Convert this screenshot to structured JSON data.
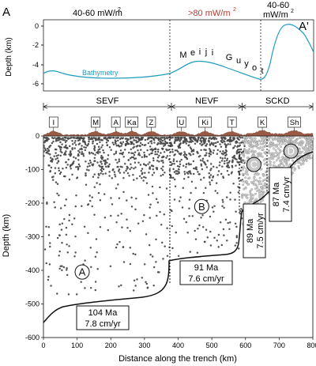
{
  "top_panel": {
    "label_left": "A",
    "label_right": "A'",
    "heat_left": "40-60 mW/m",
    "heat_middle": ">80 mW/m",
    "heat_right_line1": "40-60",
    "heat_right_line2": "mW/m",
    "superscript": "2",
    "ylabel": "Depth (km)",
    "yticks": [
      "0",
      "-2",
      "-4",
      "-6"
    ],
    "bathymetry_label": "Bathymetry",
    "guyot_letters": [
      "M",
      "e",
      "i",
      "j",
      "i",
      "G",
      "u",
      "y",
      "o",
      "t"
    ],
    "heat_middle_color": "#c0392b",
    "bathymetry_color": "#1f9bbf"
  },
  "segments": [
    {
      "name": "SEVF",
      "x_from": 0,
      "x_to": 380
    },
    {
      "name": "NEVF",
      "x_from": 380,
      "x_to": 590
    },
    {
      "name": "SCKD",
      "x_from": 590,
      "x_to": 800
    }
  ],
  "volcano_labels": [
    {
      "text": "I",
      "x": 30
    },
    {
      "text": "M",
      "x": 155
    },
    {
      "text": "A",
      "x": 215
    },
    {
      "text": "Ka",
      "x": 262
    },
    {
      "text": "Z",
      "x": 320
    },
    {
      "text": "U",
      "x": 410
    },
    {
      "text": "Ki",
      "x": 480
    },
    {
      "text": "T",
      "x": 560
    },
    {
      "text": "K",
      "x": 650
    },
    {
      "text": "Sh",
      "x": 745
    }
  ],
  "zones": [
    {
      "text": "A",
      "x": 115,
      "depth": 405,
      "shaded": false
    },
    {
      "text": "B",
      "x": 470,
      "depth": 210,
      "shaded": false
    },
    {
      "text": "C",
      "x": 625,
      "depth": 85,
      "shaded": true
    },
    {
      "text": "D",
      "x": 735,
      "depth": 45,
      "shaded": true
    }
  ],
  "age_boxes": [
    {
      "line1": "104 Ma",
      "line2": "7.8 cm/yr"
    },
    {
      "line1": "91 Ma",
      "line2": "7.6 cm/yr"
    },
    {
      "line1": "89 Ma",
      "line2": "7.5 cm/yr"
    },
    {
      "line1": "87 Ma",
      "line2": "7.4 cm/yr"
    }
  ],
  "main_axes": {
    "xlabel": "Distance along the trench (km)",
    "ylabel": "Depth (km)",
    "xlim": [
      0,
      800
    ],
    "ylim": [
      -600,
      0
    ],
    "xticks": [
      "0",
      "100",
      "200",
      "300",
      "400",
      "500",
      "600",
      "700",
      "800"
    ],
    "yticks": [
      "0",
      "-100",
      "-200",
      "-300",
      "-400",
      "-500",
      "-600"
    ]
  }
}
